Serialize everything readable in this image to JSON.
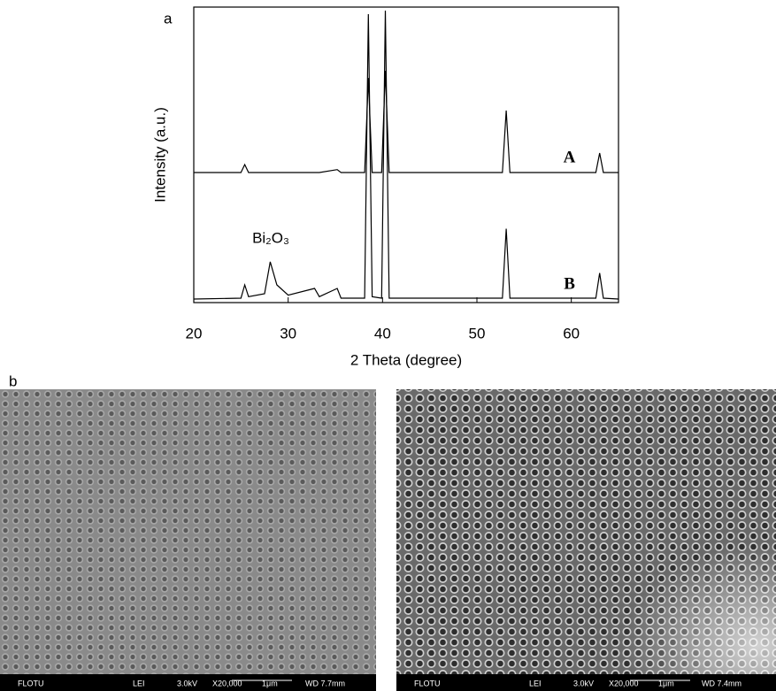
{
  "chart_data": {
    "type": "line",
    "xlabel": "2 Theta (degree)",
    "ylabel": "Intensity (a.u.)",
    "annotation": "Bi₂O₃",
    "xlim": [
      20,
      65
    ],
    "ylim": [
      0,
      100
    ],
    "xticks": [
      20,
      30,
      40,
      50,
      60
    ],
    "x": [
      20,
      25,
      25.4,
      25.8,
      27.5,
      28.1,
      28.8,
      30,
      32.8,
      33.3,
      35.2,
      35.6,
      38.1,
      38.5,
      38.9,
      39.9,
      40.3,
      40.7,
      45,
      52.7,
      53.1,
      53.5,
      62.6,
      63.0,
      63.4,
      65
    ],
    "series": [
      {
        "name": "A",
        "color": "#000000",
        "values": [
          44,
          44,
          46.7,
          44,
          44,
          44,
          44,
          44,
          44,
          44,
          45,
          44,
          44,
          76,
          44,
          44,
          78.4,
          44,
          44,
          44,
          65,
          44,
          44,
          50.6,
          44,
          44
        ]
      },
      {
        "name": "B",
        "color": "#000000",
        "values": [
          1.2,
          1.5,
          6,
          2,
          3,
          13.8,
          6,
          2.5,
          4.8,
          2,
          4.8,
          1.5,
          1.5,
          97.6,
          2,
          1.5,
          98.8,
          1.5,
          1.5,
          1.5,
          25,
          1.5,
          1.5,
          10,
          1.5,
          1.2
        ]
      }
    ]
  },
  "panel_labels": [
    "a",
    "b"
  ],
  "sem_images": [
    {
      "info": [
        "FLOTU",
        "LEI",
        "3.0kV",
        "X20,000",
        "1μm",
        "WD 7.7mm"
      ]
    },
    {
      "info": [
        "FLOTU",
        "LEI",
        "3.0kV",
        "X20,000",
        "1μm",
        "WD 7.4mm"
      ]
    }
  ]
}
